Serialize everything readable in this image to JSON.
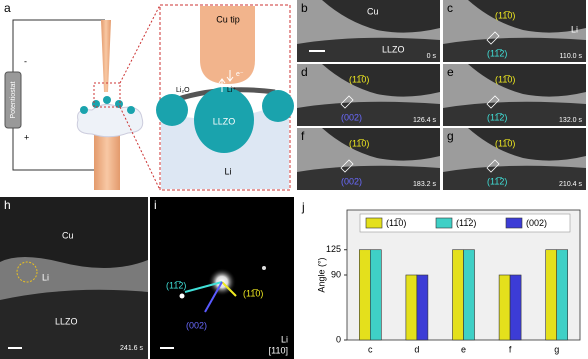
{
  "panels": {
    "a": {
      "label": "a",
      "potentiostat": "Potentiostat",
      "minus": "-",
      "plus": "+",
      "cu_tip": "Cu tip",
      "electron": "e⁻",
      "li_ion": "Li⁺",
      "li2o": "Li₂O",
      "llzo": "LLZO",
      "li": "Li"
    },
    "b": {
      "label": "b",
      "cu": "Cu",
      "llzo": "LLZO",
      "time": "0 s"
    },
    "c": {
      "label": "c",
      "plane1": "(11̅0)",
      "li": "Li",
      "plane2": "(11̅2)",
      "time": "110.0 s"
    },
    "d": {
      "label": "d",
      "plane1": "(11̅0)",
      "plane2": "(002)",
      "time": "126.4 s"
    },
    "e": {
      "label": "e",
      "plane1": "(11̅0)",
      "plane2": "(11̅2)",
      "time": "132.0 s"
    },
    "f": {
      "label": "f",
      "plane1": "(11̅0)",
      "plane2": "(002)",
      "time": "183.2 s"
    },
    "g": {
      "label": "g",
      "plane1": "(11̅0)",
      "plane2": "(11̅2)",
      "time": "210.4 s"
    },
    "h": {
      "label": "h",
      "cu": "Cu",
      "li": "Li",
      "llzo": "LLZO",
      "time": "241.6 s"
    },
    "i": {
      "label": "i",
      "plane1": "(11̅2)",
      "plane2": "(11̅0)",
      "plane3": "(002)",
      "li": "Li",
      "zone": "[110]"
    },
    "j": {
      "label": "j"
    }
  },
  "chart_data": {
    "type": "bar",
    "ylabel": "Angle (°)",
    "categories": [
      "c",
      "d",
      "e",
      "f",
      "g"
    ],
    "series": [
      {
        "name": "(11̅0)",
        "color": "#e4e01c",
        "values": [
          125,
          90,
          125,
          90,
          125
        ]
      },
      {
        "name": "(11̅2)",
        "color": "#3fd0c6",
        "values": [
          125,
          null,
          125,
          null,
          125
        ]
      },
      {
        "name": "(002)",
        "color": "#3c3cd6",
        "values": [
          null,
          90,
          null,
          90,
          null
        ]
      }
    ],
    "ylim": [
      0,
      180
    ],
    "yticks": [
      0,
      90,
      125
    ],
    "legend": "top"
  }
}
